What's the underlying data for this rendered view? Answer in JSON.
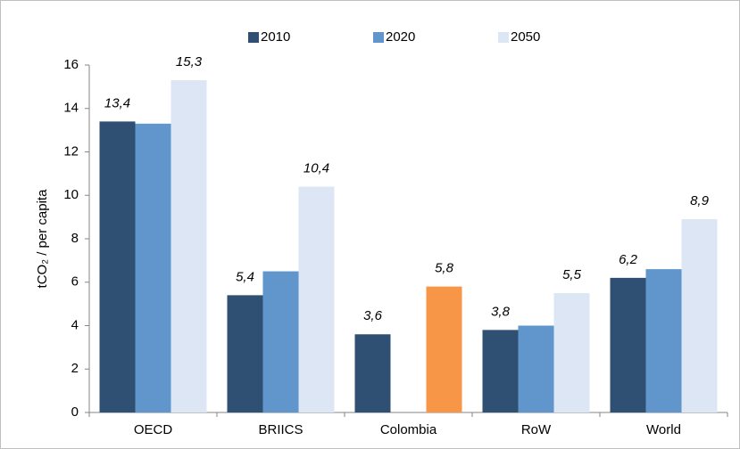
{
  "chart_data": {
    "type": "bar",
    "y_label": "tCO₂ / per capita",
    "categories": [
      "OECD",
      "BRIICS",
      "Colombia",
      "RoW",
      "World"
    ],
    "series": [
      {
        "name": "2010",
        "color": "#2f5072",
        "values": [
          13.4,
          5.4,
          3.6,
          3.8,
          6.2
        ],
        "value_labels": [
          "13,4",
          "5,4",
          "3,6",
          "3,8",
          "6,2"
        ]
      },
      {
        "name": "2020",
        "color": "#6096cc",
        "values": [
          13.3,
          6.5,
          null,
          4.0,
          6.6
        ]
      },
      {
        "name": "2050",
        "color": "#dce6f4",
        "colors": [
          "#dce6f4",
          "#dce6f4",
          "#f79646",
          "#dce6f4",
          "#dce6f4"
        ],
        "values": [
          15.3,
          10.4,
          5.8,
          5.5,
          8.9
        ],
        "value_labels": [
          "15,3",
          "10,4",
          "5,8",
          "5,5",
          "8,9"
        ]
      }
    ],
    "ylim": [
      0,
      16
    ],
    "yticks": [
      0,
      2,
      4,
      6,
      8,
      10,
      12,
      14,
      16
    ],
    "grid": false,
    "legend": "top"
  }
}
